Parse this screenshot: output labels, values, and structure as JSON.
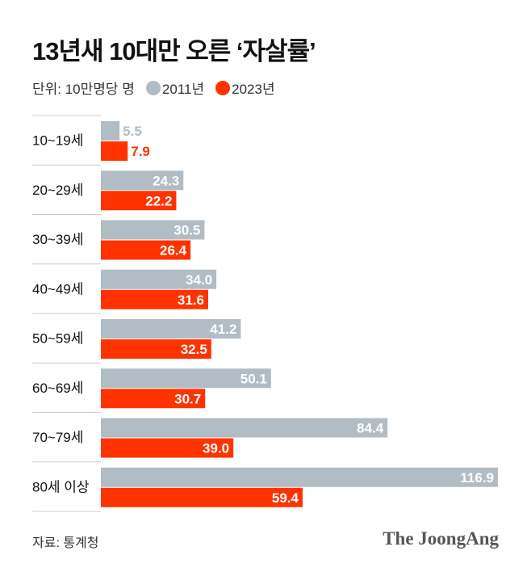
{
  "title": "13년새 10대만 오른 ‘자살률’",
  "unit": "단위: 10만명당 명",
  "source": "자료: 통계청",
  "logo": "The JoongAng",
  "chart_data": {
    "type": "bar",
    "orientation": "horizontal",
    "categories": [
      "10~19세",
      "20~29세",
      "30~39세",
      "40~49세",
      "50~59세",
      "60~69세",
      "70~79세",
      "80세 이상"
    ],
    "series": [
      {
        "name": "2011년",
        "color": "#b1bcc4",
        "values": [
          5.5,
          24.3,
          30.5,
          34.0,
          41.2,
          50.1,
          84.4,
          116.9
        ]
      },
      {
        "name": "2023년",
        "color": "#ff3300",
        "values": [
          7.9,
          22.2,
          26.4,
          31.6,
          32.5,
          30.7,
          39.0,
          59.4
        ]
      }
    ],
    "xlim": [
      0,
      116.9
    ],
    "grid": false,
    "legend": "top-left"
  }
}
